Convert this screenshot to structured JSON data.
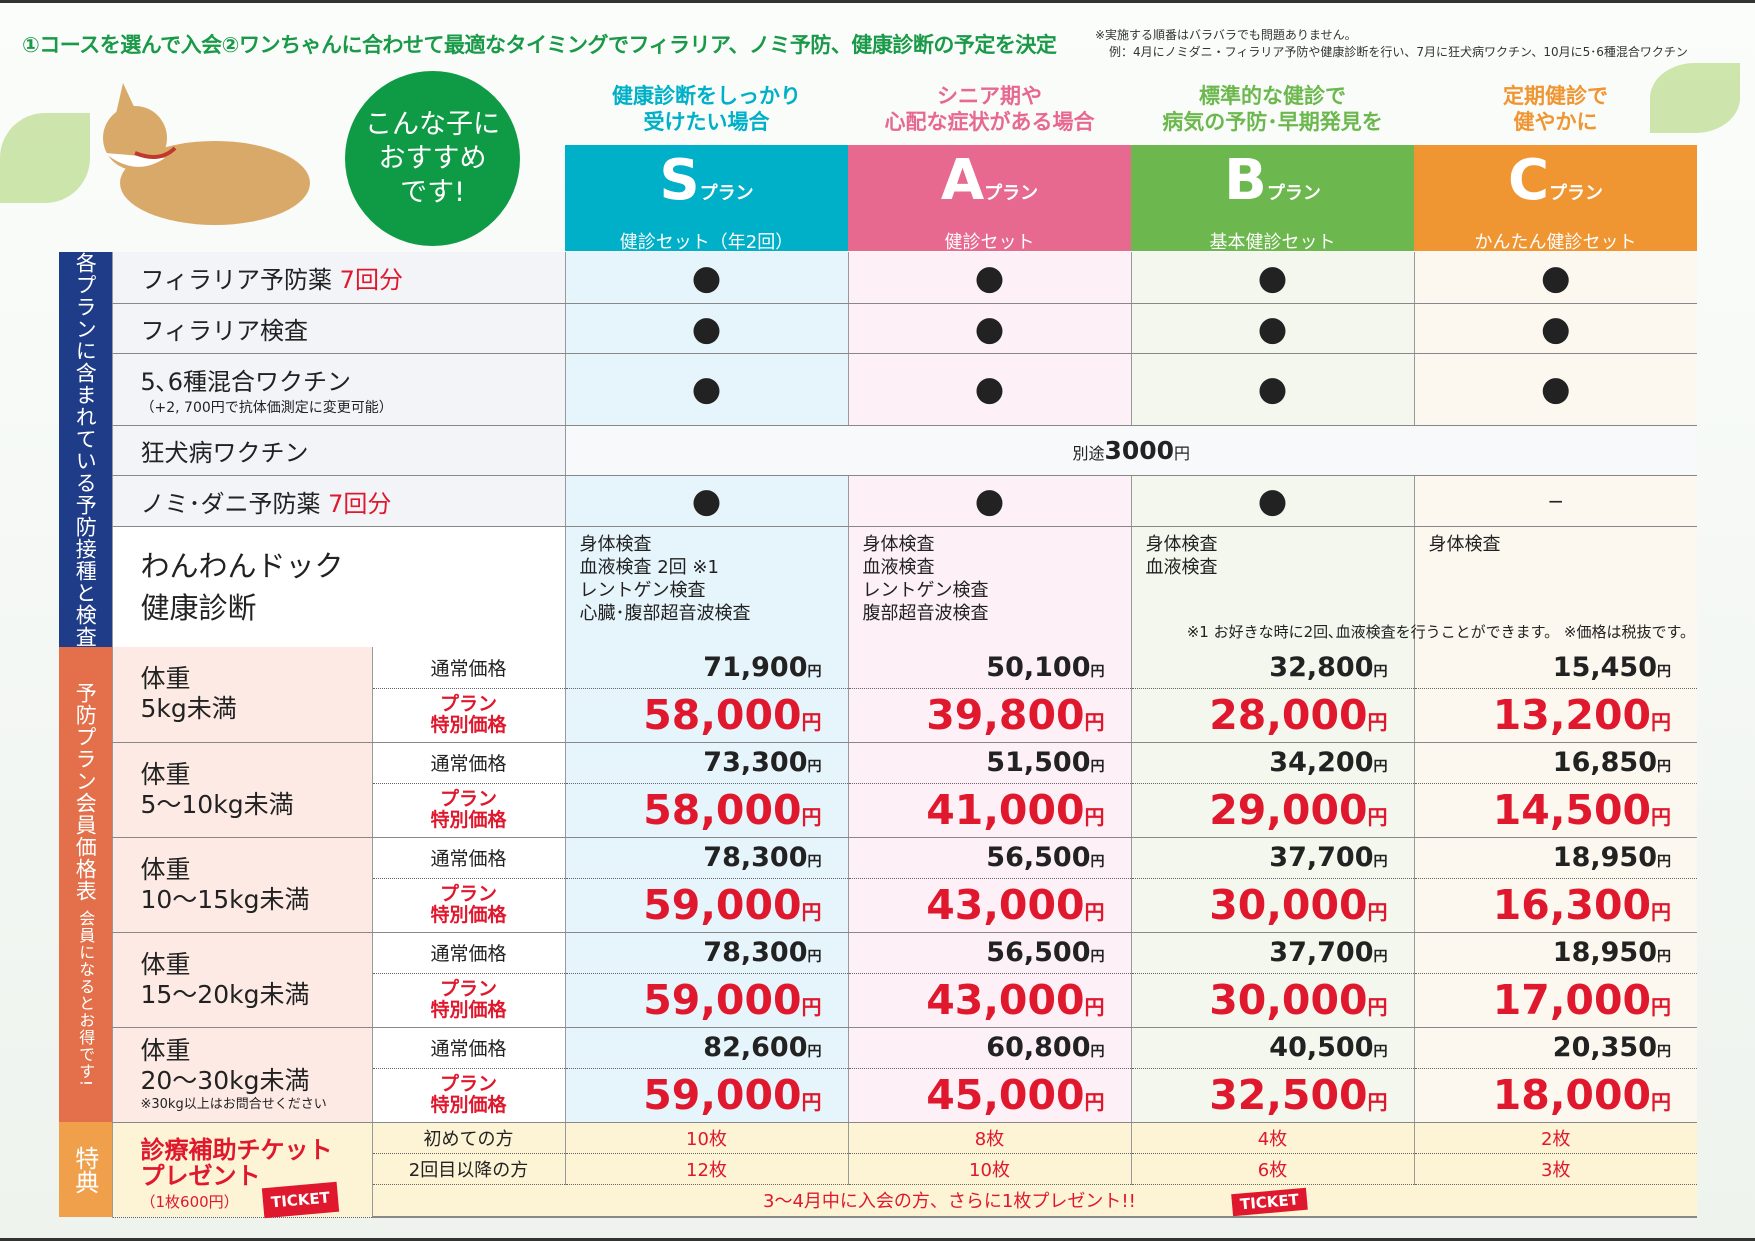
{
  "header": {
    "main": "①コースを選んで入会②ワンちゃんに合わせて最適なタイミングでフィラリア、ノミ予防、健康診断の予定を決定",
    "note1": "※実施する順番はバラバラでも問題ありません。",
    "note2": "例：4月にノミダニ・フィラリア予防や健康診断を行い、7月に狂犬病ワクチン、10月に5･6種混合ワクチン"
  },
  "recommend": {
    "line1": "こんな子に",
    "line2": "おすすめ",
    "line3": "です!"
  },
  "plans": [
    {
      "caption1": "健康診断をしっかり",
      "caption2": "受けたい場合",
      "letter": "S",
      "suffix": "プラン",
      "subtitle": "健診セット（年2回）",
      "color": "#00b0c8"
    },
    {
      "caption1": "シニア期や",
      "caption2": "心配な症状がある場合",
      "letter": "A",
      "suffix": "プラン",
      "subtitle": "健診セット",
      "color": "#e8698f"
    },
    {
      "caption1": "標準的な健診で",
      "caption2": "病気の予防･早期発見を",
      "letter": "B",
      "suffix": "プラン",
      "subtitle": "基本健診セット",
      "color": "#6cb84e"
    },
    {
      "caption1": "定期健診で",
      "caption2": "健やかに",
      "letter": "C",
      "suffix": "プラン",
      "subtitle": "かんたん健診セット",
      "color": "#ef9532"
    }
  ],
  "included": {
    "side_label": "各プランに含まれている予防接種と検査",
    "rows": [
      {
        "name": "フィラリア予防薬",
        "highlight": "7回分",
        "note": "",
        "cells": [
          "●",
          "●",
          "●",
          "●"
        ]
      },
      {
        "name": "フィラリア検査",
        "highlight": "",
        "note": "",
        "cells": [
          "●",
          "●",
          "●",
          "●"
        ]
      },
      {
        "name": "5､6種混合ワクチン",
        "highlight": "",
        "note": "（+2, 700円で抗体価測定に変更可能）",
        "cells": [
          "●",
          "●",
          "●",
          "●"
        ]
      },
      {
        "name": "ノミ･ダニ予防薬",
        "highlight": "7回分",
        "note": "",
        "cells": [
          "●",
          "●",
          "●",
          "−"
        ]
      }
    ],
    "rabies": {
      "name": "狂犬病ワクチン",
      "prefix": "別途",
      "price": "3000",
      "unit": "円"
    },
    "dock": {
      "name1": "わんわんドック",
      "name2": "健康診断",
      "exams": [
        [
          "身体検査",
          "血液検査 2回 ※1",
          "レントゲン検査",
          "心臓･腹部超音波検査"
        ],
        [
          "身体検査",
          "血液検査",
          "レントゲン検査",
          "腹部超音波検査"
        ],
        [
          "身体検査",
          "血液検査"
        ],
        [
          "身体検査"
        ]
      ]
    }
  },
  "footnote": "※1 お好きな時に2回､血液検査を行うことができます。 ※価格は税抜です。",
  "prices": {
    "side_label": "予防プラン会員価格表",
    "side_sub": "会員になるとお得です!",
    "regular_label": "通常価格",
    "special_label1": "プラン",
    "special_label2": "特別価格",
    "unit": "円",
    "rows": [
      {
        "w1": "体重",
        "w2": "5kg未満",
        "note": "",
        "regular": [
          "71,900",
          "50,100",
          "32,800",
          "15,450"
        ],
        "special": [
          "58,000",
          "39,800",
          "28,000",
          "13,200"
        ]
      },
      {
        "w1": "体重",
        "w2": "5〜10kg未満",
        "note": "",
        "regular": [
          "73,300",
          "51,500",
          "34,200",
          "16,850"
        ],
        "special": [
          "58,000",
          "41,000",
          "29,000",
          "14,500"
        ]
      },
      {
        "w1": "体重",
        "w2": "10〜15kg未満",
        "note": "",
        "regular": [
          "78,300",
          "56,500",
          "37,700",
          "18,950"
        ],
        "special": [
          "59,000",
          "43,000",
          "30,000",
          "16,300"
        ]
      },
      {
        "w1": "体重",
        "w2": "15〜20kg未満",
        "note": "",
        "regular": [
          "78,300",
          "56,500",
          "37,700",
          "18,950"
        ],
        "special": [
          "59,000",
          "43,000",
          "30,000",
          "17,000"
        ]
      },
      {
        "w1": "体重",
        "w2": "20〜30kg未満",
        "note": "※30kg以上はお問合せください",
        "regular": [
          "82,600",
          "60,800",
          "40,500",
          "20,350"
        ],
        "special": [
          "59,000",
          "45,000",
          "32,500",
          "18,000"
        ]
      }
    ]
  },
  "tickets": {
    "side_label": "特典",
    "title1": "診療補助チケット",
    "title2": "プレゼント",
    "note": "（1枚600円）",
    "badge": "TICKET",
    "first_label": "初めての方",
    "first": [
      "10枚",
      "8枚",
      "4枚",
      "2枚"
    ],
    "repeat_label": "2回目以降の方",
    "repeat": [
      "12枚",
      "10枚",
      "6枚",
      "3枚"
    ],
    "bonus": "3〜4月中に入会の方、さらに1枚プレゼント!!",
    "bonus_badge": "TICKET"
  }
}
